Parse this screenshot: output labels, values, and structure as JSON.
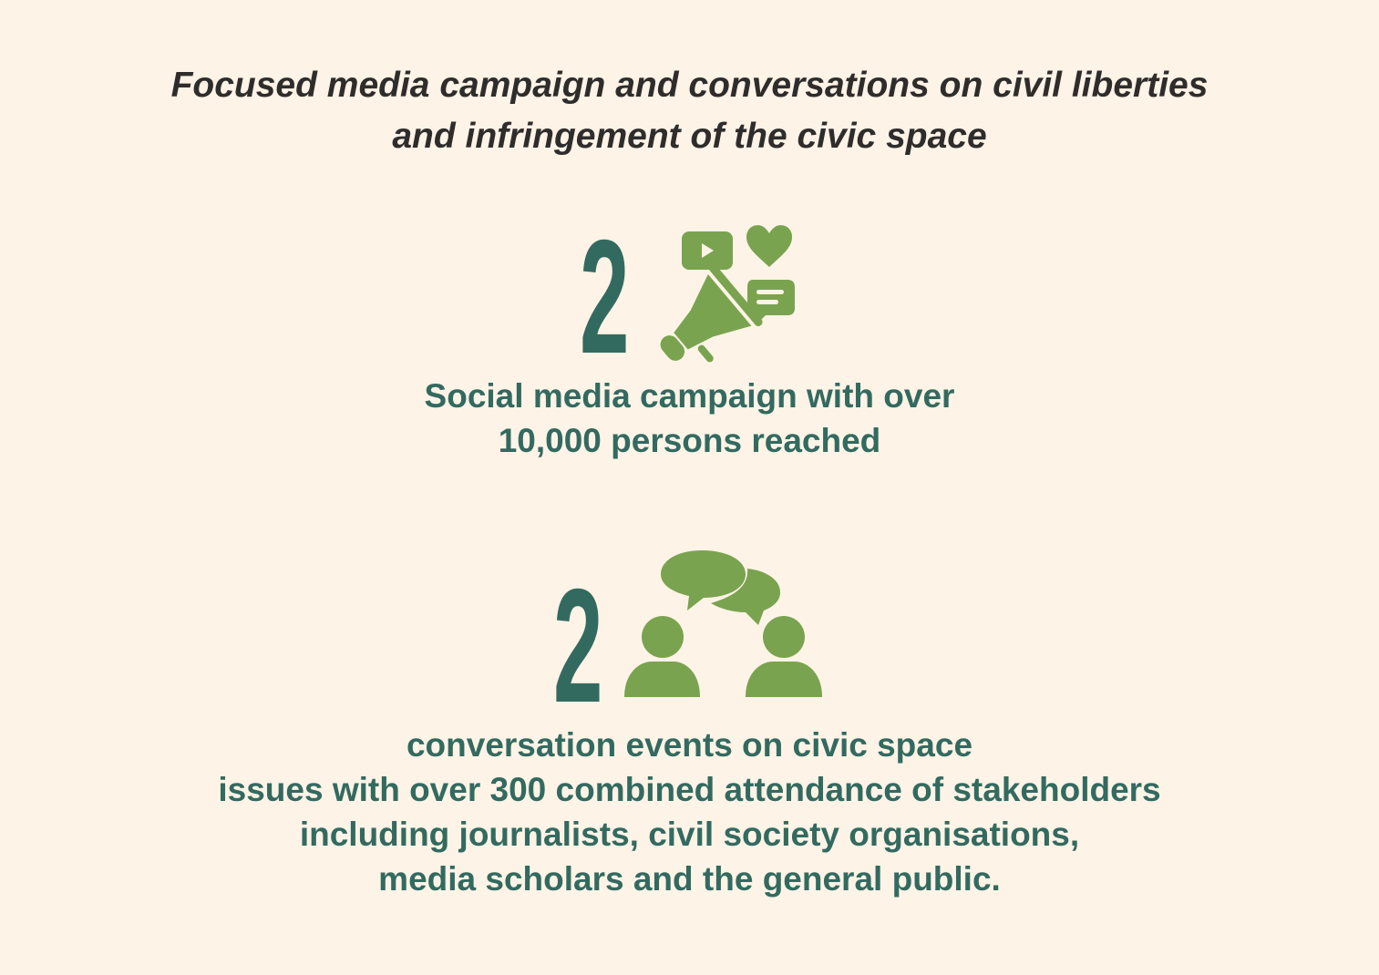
{
  "title": {
    "line1": "Focused media campaign and conversations on civil liberties",
    "line2": "and infringement of the civic space"
  },
  "colors": {
    "background": "#fdf3e6",
    "number": "#336a60",
    "icon": "#7aa350",
    "title": "#2f2d2c"
  },
  "stats": [
    {
      "number": "2",
      "icon": "megaphone-social-media-icon",
      "lines": [
        "Social media campaign with over",
        "10,000 persons reached"
      ]
    },
    {
      "number": "2",
      "icon": "people-conversation-icon",
      "lines": [
        "conversation events on civic space",
        "issues with over 300 combined attendance of stakeholders",
        "including journalists, civil society organisations,",
        "media scholars and the general public."
      ]
    }
  ]
}
